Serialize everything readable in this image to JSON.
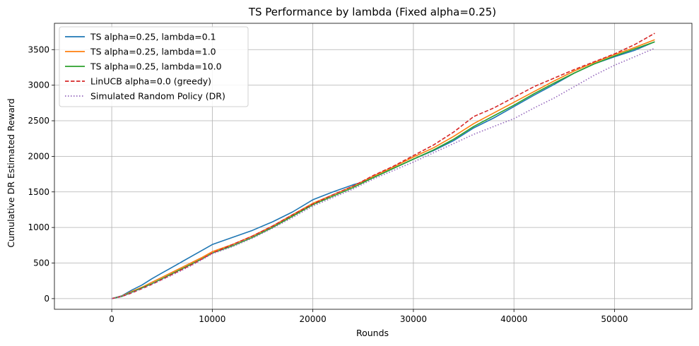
{
  "chart_data": {
    "type": "line",
    "title": "TS Performance by lambda (Fixed alpha=0.25)",
    "xlabel": "Rounds",
    "ylabel": "Cumulative DR Estimated Reward",
    "xlim": [
      -5700,
      57700
    ],
    "ylim": [
      -150,
      3870
    ],
    "xticks": [
      0,
      10000,
      20000,
      30000,
      40000,
      50000
    ],
    "yticks": [
      0,
      500,
      1000,
      1500,
      2000,
      2500,
      3000,
      3500
    ],
    "grid": true,
    "legend_position": "top-left",
    "series": [
      {
        "name": "TS alpha=0.25, lambda=0.1",
        "color": "#1f77b4",
        "style": "solid",
        "x": [
          0,
          1000,
          2000,
          3000,
          4000,
          5000,
          6000,
          7000,
          8000,
          9000,
          10000,
          12000,
          14000,
          16000,
          18000,
          20000,
          22000,
          24000,
          25000,
          26000,
          28000,
          30000,
          32000,
          34000,
          36000,
          38000,
          40000,
          42000,
          44000,
          46000,
          48000,
          50000,
          52000,
          54000
        ],
        "y": [
          0,
          40,
          120,
          190,
          280,
          360,
          440,
          520,
          600,
          680,
          760,
          860,
          960,
          1080,
          1220,
          1390,
          1500,
          1600,
          1640,
          1700,
          1830,
          1960,
          2080,
          2220,
          2400,
          2540,
          2700,
          2860,
          3010,
          3170,
          3300,
          3400,
          3490,
          3610
        ]
      },
      {
        "name": "TS alpha=0.25, lambda=1.0",
        "color": "#ff7f0e",
        "style": "solid",
        "x": [
          0,
          1000,
          2000,
          3000,
          4000,
          5000,
          6000,
          7000,
          8000,
          9000,
          10000,
          12000,
          14000,
          16000,
          18000,
          20000,
          22000,
          24000,
          26000,
          28000,
          30000,
          32000,
          34000,
          36000,
          38000,
          40000,
          42000,
          44000,
          46000,
          48000,
          50000,
          52000,
          54000
        ],
        "y": [
          0,
          35,
          100,
          160,
          230,
          300,
          370,
          440,
          510,
          580,
          660,
          760,
          880,
          1020,
          1180,
          1340,
          1460,
          1580,
          1720,
          1850,
          1990,
          2120,
          2280,
          2460,
          2610,
          2760,
          2910,
          3060,
          3200,
          3320,
          3430,
          3530,
          3640
        ]
      },
      {
        "name": "TS alpha=0.25, lambda=10.0",
        "color": "#2ca02c",
        "style": "solid",
        "x": [
          0,
          1000,
          2000,
          3000,
          4000,
          5000,
          6000,
          7000,
          8000,
          9000,
          10000,
          12000,
          14000,
          16000,
          18000,
          20000,
          22000,
          24000,
          26000,
          28000,
          30000,
          32000,
          34000,
          36000,
          38000,
          40000,
          42000,
          44000,
          46000,
          48000,
          50000,
          52000,
          54000
        ],
        "y": [
          0,
          30,
          90,
          150,
          210,
          280,
          350,
          420,
          490,
          560,
          640,
          740,
          860,
          1000,
          1160,
          1320,
          1440,
          1560,
          1700,
          1830,
          1960,
          2090,
          2240,
          2420,
          2570,
          2720,
          2880,
          3030,
          3170,
          3300,
          3410,
          3510,
          3610
        ]
      },
      {
        "name": "LinUCB alpha=0.0 (greedy)",
        "color": "#d62728",
        "style": "dashed",
        "x": [
          0,
          1000,
          2000,
          3000,
          4000,
          5000,
          6000,
          7000,
          8000,
          9000,
          10000,
          12000,
          14000,
          16000,
          18000,
          20000,
          22000,
          24000,
          26000,
          28000,
          30000,
          32000,
          34000,
          36000,
          38000,
          40000,
          42000,
          44000,
          46000,
          48000,
          50000,
          52000,
          54000
        ],
        "y": [
          0,
          30,
          80,
          140,
          200,
          270,
          340,
          410,
          480,
          560,
          640,
          760,
          880,
          1020,
          1180,
          1330,
          1460,
          1580,
          1730,
          1860,
          2010,
          2160,
          2340,
          2560,
          2680,
          2830,
          2980,
          3100,
          3220,
          3330,
          3440,
          3570,
          3730
        ]
      },
      {
        "name": "Simulated Random Policy (DR)",
        "color": "#9467bd",
        "style": "dotted",
        "x": [
          0,
          1000,
          2000,
          3000,
          4000,
          5000,
          6000,
          7000,
          8000,
          9000,
          10000,
          12000,
          14000,
          16000,
          18000,
          20000,
          22000,
          24000,
          26000,
          28000,
          30000,
          32000,
          34000,
          36000,
          38000,
          40000,
          42000,
          44000,
          46000,
          48000,
          50000,
          52000,
          54000
        ],
        "y": [
          0,
          30,
          85,
          140,
          200,
          265,
          330,
          400,
          470,
          550,
          630,
          730,
          850,
          990,
          1140,
          1300,
          1420,
          1540,
          1680,
          1800,
          1920,
          2050,
          2180,
          2310,
          2420,
          2530,
          2680,
          2820,
          2980,
          3140,
          3280,
          3400,
          3520
        ]
      }
    ]
  }
}
